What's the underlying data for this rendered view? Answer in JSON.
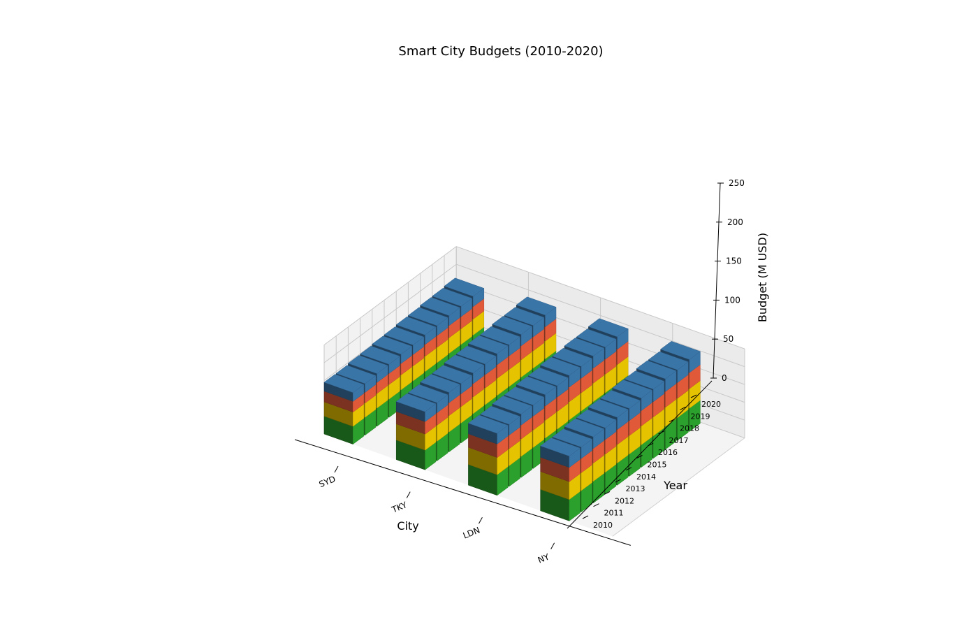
{
  "chart_data": {
    "type": "bar",
    "title": "Smart City Budgets (2010-2020)",
    "xlabel": "City",
    "ylabel": "Year",
    "zlabel": "Budget (M USD)",
    "zlim": [
      0,
      250
    ],
    "zticks": [
      0,
      50,
      100,
      150,
      200,
      250
    ],
    "cities": [
      "SYD",
      "TKY",
      "LDN",
      "NY"
    ],
    "years": [
      "2010",
      "2011",
      "2012",
      "2013",
      "2014",
      "2015",
      "2016",
      "2017",
      "2018",
      "2019",
      "2020"
    ],
    "stacked": true,
    "grid": true,
    "legend": "none",
    "series": [
      {
        "color": "#2ca02c",
        "values": [
          [
            50,
            50,
            51,
            51,
            52,
            52,
            53,
            53,
            54,
            54,
            55
          ],
          [
            55,
            55,
            56,
            56,
            57,
            57,
            58,
            58,
            59,
            59,
            60
          ],
          [
            58,
            58,
            59,
            59,
            60,
            60,
            61,
            61,
            62,
            62,
            63
          ],
          [
            60,
            60,
            61,
            61,
            62,
            62,
            63,
            63,
            64,
            64,
            65
          ]
        ]
      },
      {
        "color": "#e6c300",
        "values": [
          [
            40,
            40,
            41,
            41,
            42,
            42,
            43,
            43,
            44,
            44,
            45
          ],
          [
            45,
            45,
            46,
            46,
            47,
            47,
            48,
            48,
            49,
            49,
            50
          ],
          [
            48,
            48,
            49,
            49,
            50,
            50,
            51,
            51,
            52,
            52,
            53
          ],
          [
            50,
            50,
            51,
            51,
            52,
            52,
            53,
            53,
            54,
            54,
            55
          ]
        ]
      },
      {
        "color": "#e05a3a",
        "values": [
          [
            30,
            30,
            31,
            31,
            32,
            32,
            33,
            33,
            34,
            34,
            35
          ],
          [
            35,
            35,
            36,
            36,
            37,
            37,
            38,
            38,
            39,
            39,
            40
          ],
          [
            38,
            38,
            39,
            39,
            40,
            40,
            41,
            41,
            42,
            42,
            43
          ],
          [
            40,
            40,
            41,
            41,
            42,
            42,
            43,
            43,
            44,
            44,
            45
          ]
        ]
      },
      {
        "color": "#3a75a8",
        "values": [
          [
            25,
            25,
            25,
            26,
            26,
            27,
            27,
            28,
            28,
            29,
            29
          ],
          [
            28,
            28,
            29,
            29,
            30,
            30,
            31,
            31,
            32,
            32,
            33
          ],
          [
            30,
            30,
            31,
            31,
            32,
            32,
            33,
            33,
            34,
            34,
            35
          ],
          [
            32,
            32,
            33,
            33,
            34,
            34,
            35,
            35,
            36,
            36,
            37
          ]
        ]
      }
    ]
  }
}
